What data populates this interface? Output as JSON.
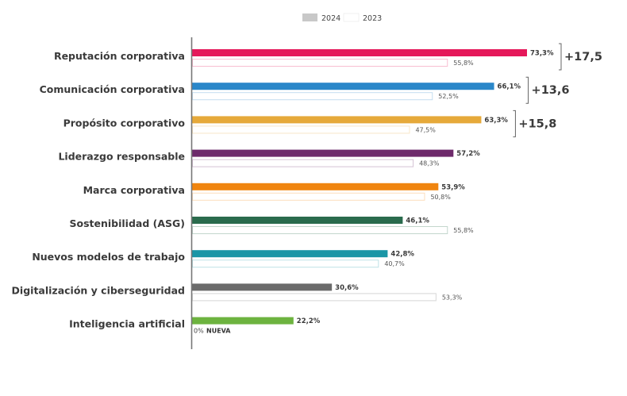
{
  "chart_data": {
    "type": "bar",
    "orientation": "horizontal",
    "title": "",
    "xlabel": "",
    "ylabel": "",
    "xlim": [
      0,
      100
    ],
    "grid": false,
    "legend_position": "top-center",
    "legend": [
      {
        "name": "2024",
        "color": "#c8c8c8"
      },
      {
        "name": "2023",
        "color": "#ffffff"
      }
    ],
    "categories": [
      "Reputación corporativa",
      "Comunicación corporativa",
      "Propósito corporativo",
      "Liderazgo responsable",
      "Marca corporativa",
      "Sostenibilidad (ASG)",
      "Nuevos modelos de trabajo",
      "Digitalización y ciberseguridad",
      "Inteligencia artificial"
    ],
    "series": [
      {
        "name": "2024",
        "values": [
          73.3,
          66.1,
          63.3,
          57.2,
          53.9,
          46.1,
          42.8,
          30.6,
          22.2
        ],
        "labels": [
          "73,3%",
          "66,1%",
          "63,3%",
          "57,2%",
          "53,9%",
          "46,1%",
          "42,8%",
          "30,6%",
          "22,2%"
        ]
      },
      {
        "name": "2023",
        "values": [
          55.8,
          52.5,
          47.5,
          48.3,
          50.8,
          55.8,
          40.7,
          53.3,
          0
        ],
        "labels": [
          "55,8%",
          "52,5%",
          "47,5%",
          "48,3%",
          "50,8%",
          "55,8%",
          "40,7%",
          "53,3%",
          "0%"
        ]
      }
    ],
    "bar_colors": [
      "#e5185a",
      "#2a87c9",
      "#e6a93a",
      "#6e2a6b",
      "#f0850f",
      "#2a6b4d",
      "#1a96a6",
      "#6b6b6b",
      "#6db33f"
    ],
    "annotations": [
      {
        "category": "Reputación corporativa",
        "text": "+17,5"
      },
      {
        "category": "Comunicación corporativa",
        "text": "+13,6"
      },
      {
        "category": "Propósito corporativo",
        "text": "+15,8"
      },
      {
        "category": "Inteligencia artificial",
        "text": "NUEVA"
      }
    ]
  }
}
